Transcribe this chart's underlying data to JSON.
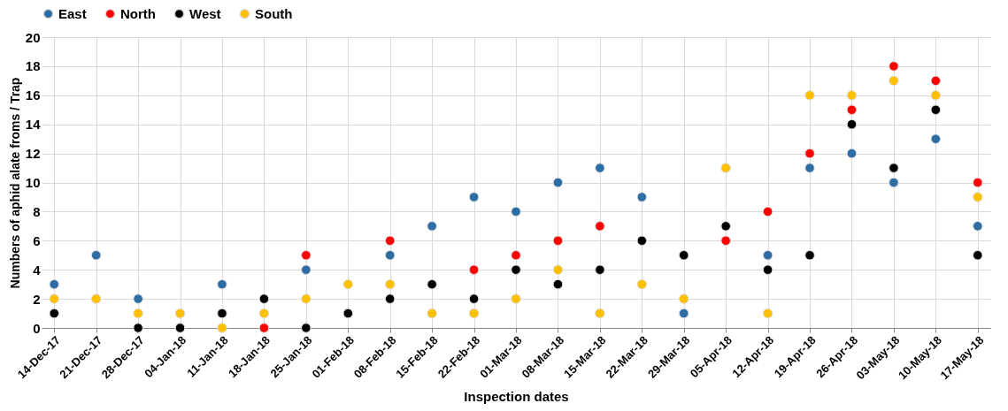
{
  "chart_data": {
    "type": "scatter",
    "xlabel": "Inspection dates",
    "ylabel": "Numbers of aphid alate froms / Trap",
    "categories": [
      "14-Dec-17",
      "21-Dec-17",
      "28-Dec-17",
      "04-Jan-18",
      "11-Jan-18",
      "18-Jan-18",
      "25-Jan-18",
      "01-Feb-18",
      "08-Feb-18",
      "15-Feb-18",
      "22-Feb-18",
      "01-Mar-18",
      "08-Mar-18",
      "15-Mar-18",
      "22-Mar-18",
      "29-Mar-18",
      "05-Apr-18",
      "12-Apr-18",
      "19-Apr-18",
      "26-Apr-18",
      "03-May-18",
      "10-May-18",
      "17-May-18"
    ],
    "series": [
      {
        "name": "East",
        "color": "#2e6da4",
        "values": [
          3,
          5,
          2,
          null,
          3,
          null,
          4,
          null,
          5,
          7,
          9,
          8,
          10,
          11,
          9,
          1,
          null,
          5,
          11,
          12,
          10,
          13,
          7
        ]
      },
      {
        "name": "North",
        "color": "#ff0000",
        "values": [
          null,
          null,
          null,
          null,
          null,
          0,
          5,
          null,
          6,
          null,
          4,
          5,
          6,
          7,
          null,
          null,
          6,
          8,
          12,
          15,
          18,
          17,
          10
        ]
      },
      {
        "name": "West",
        "color": "#000000",
        "values": [
          1,
          null,
          0,
          0,
          1,
          2,
          0,
          1,
          2,
          3,
          2,
          4,
          3,
          4,
          6,
          5,
          7,
          4,
          5,
          14,
          11,
          15,
          5
        ]
      },
      {
        "name": "South",
        "color": "#ffc000",
        "values": [
          2,
          2,
          1,
          1,
          0,
          1,
          2,
          3,
          3,
          1,
          1,
          2,
          4,
          1,
          3,
          2,
          11,
          1,
          16,
          16,
          17,
          16,
          9
        ]
      }
    ],
    "ylim": [
      0,
      20
    ],
    "yticks": [
      0,
      2,
      4,
      6,
      8,
      10,
      12,
      14,
      16,
      18,
      20
    ],
    "grid": true,
    "legend": "top",
    "marker": "circle"
  }
}
